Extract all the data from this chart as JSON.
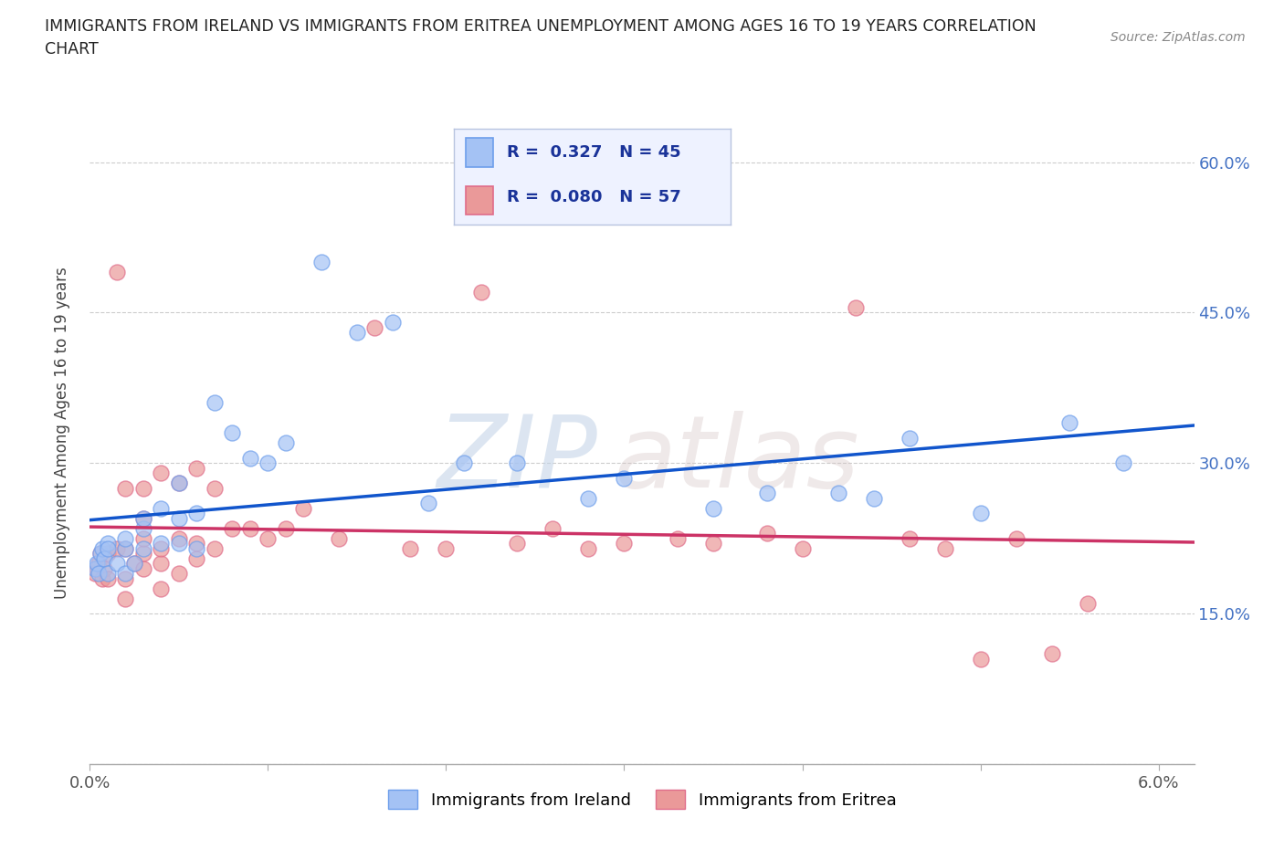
{
  "title_line1": "IMMIGRANTS FROM IRELAND VS IMMIGRANTS FROM ERITREA UNEMPLOYMENT AMONG AGES 16 TO 19 YEARS CORRELATION",
  "title_line2": "CHART",
  "source_text": "Source: ZipAtlas.com",
  "ylabel": "Unemployment Among Ages 16 to 19 years",
  "xlim": [
    0.0,
    0.062
  ],
  "ylim": [
    0.0,
    0.66
  ],
  "ireland_face_color": "#a4c2f4",
  "ireland_edge_color": "#6d9eeb",
  "eritrea_face_color": "#ea9999",
  "eritrea_edge_color": "#e06c8a",
  "ireland_line_color": "#1155cc",
  "eritrea_line_color": "#cc3366",
  "ireland_R": "0.327",
  "ireland_N": "45",
  "eritrea_R": "0.080",
  "eritrea_N": "57",
  "ytick_positions": [
    0.0,
    0.15,
    0.3,
    0.45,
    0.6
  ],
  "ytick_labels": [
    "",
    "15.0%",
    "30.0%",
    "45.0%",
    "60.0%"
  ],
  "xtick_positions": [
    0.0,
    0.01,
    0.02,
    0.03,
    0.04,
    0.05,
    0.06
  ],
  "xtick_labels": [
    "0.0%",
    "",
    "",
    "",
    "",
    "",
    "6.0%"
  ],
  "ireland_x": [
    0.0003,
    0.0004,
    0.0005,
    0.0006,
    0.0007,
    0.0008,
    0.001,
    0.001,
    0.001,
    0.0015,
    0.002,
    0.002,
    0.002,
    0.0025,
    0.003,
    0.003,
    0.003,
    0.004,
    0.004,
    0.005,
    0.005,
    0.005,
    0.006,
    0.006,
    0.007,
    0.008,
    0.009,
    0.01,
    0.011,
    0.013,
    0.015,
    0.017,
    0.019,
    0.021,
    0.024,
    0.028,
    0.03,
    0.035,
    0.038,
    0.042,
    0.044,
    0.046,
    0.05,
    0.055,
    0.058
  ],
  "ireland_y": [
    0.195,
    0.2,
    0.19,
    0.21,
    0.215,
    0.205,
    0.19,
    0.22,
    0.215,
    0.2,
    0.19,
    0.215,
    0.225,
    0.2,
    0.215,
    0.235,
    0.245,
    0.22,
    0.255,
    0.22,
    0.245,
    0.28,
    0.215,
    0.25,
    0.36,
    0.33,
    0.305,
    0.3,
    0.32,
    0.5,
    0.43,
    0.44,
    0.26,
    0.3,
    0.3,
    0.265,
    0.285,
    0.255,
    0.27,
    0.27,
    0.265,
    0.325,
    0.25,
    0.34,
    0.3
  ],
  "eritrea_x": [
    0.0003,
    0.0004,
    0.0005,
    0.0006,
    0.0007,
    0.0008,
    0.001,
    0.001,
    0.0015,
    0.002,
    0.002,
    0.002,
    0.0025,
    0.003,
    0.003,
    0.003,
    0.003,
    0.004,
    0.004,
    0.004,
    0.005,
    0.005,
    0.006,
    0.006,
    0.007,
    0.008,
    0.009,
    0.01,
    0.011,
    0.012,
    0.014,
    0.016,
    0.018,
    0.02,
    0.022,
    0.024,
    0.026,
    0.028,
    0.03,
    0.033,
    0.035,
    0.038,
    0.04,
    0.043,
    0.046,
    0.048,
    0.05,
    0.052,
    0.054,
    0.056,
    0.0015,
    0.002,
    0.003,
    0.004,
    0.005,
    0.006,
    0.007
  ],
  "eritrea_y": [
    0.19,
    0.195,
    0.2,
    0.21,
    0.185,
    0.195,
    0.185,
    0.21,
    0.215,
    0.185,
    0.215,
    0.165,
    0.2,
    0.195,
    0.21,
    0.225,
    0.245,
    0.175,
    0.2,
    0.215,
    0.19,
    0.225,
    0.205,
    0.22,
    0.215,
    0.235,
    0.235,
    0.225,
    0.235,
    0.255,
    0.225,
    0.435,
    0.215,
    0.215,
    0.47,
    0.22,
    0.235,
    0.215,
    0.22,
    0.225,
    0.22,
    0.23,
    0.215,
    0.455,
    0.225,
    0.215,
    0.105,
    0.225,
    0.11,
    0.16,
    0.49,
    0.275,
    0.275,
    0.29,
    0.28,
    0.295,
    0.275
  ]
}
